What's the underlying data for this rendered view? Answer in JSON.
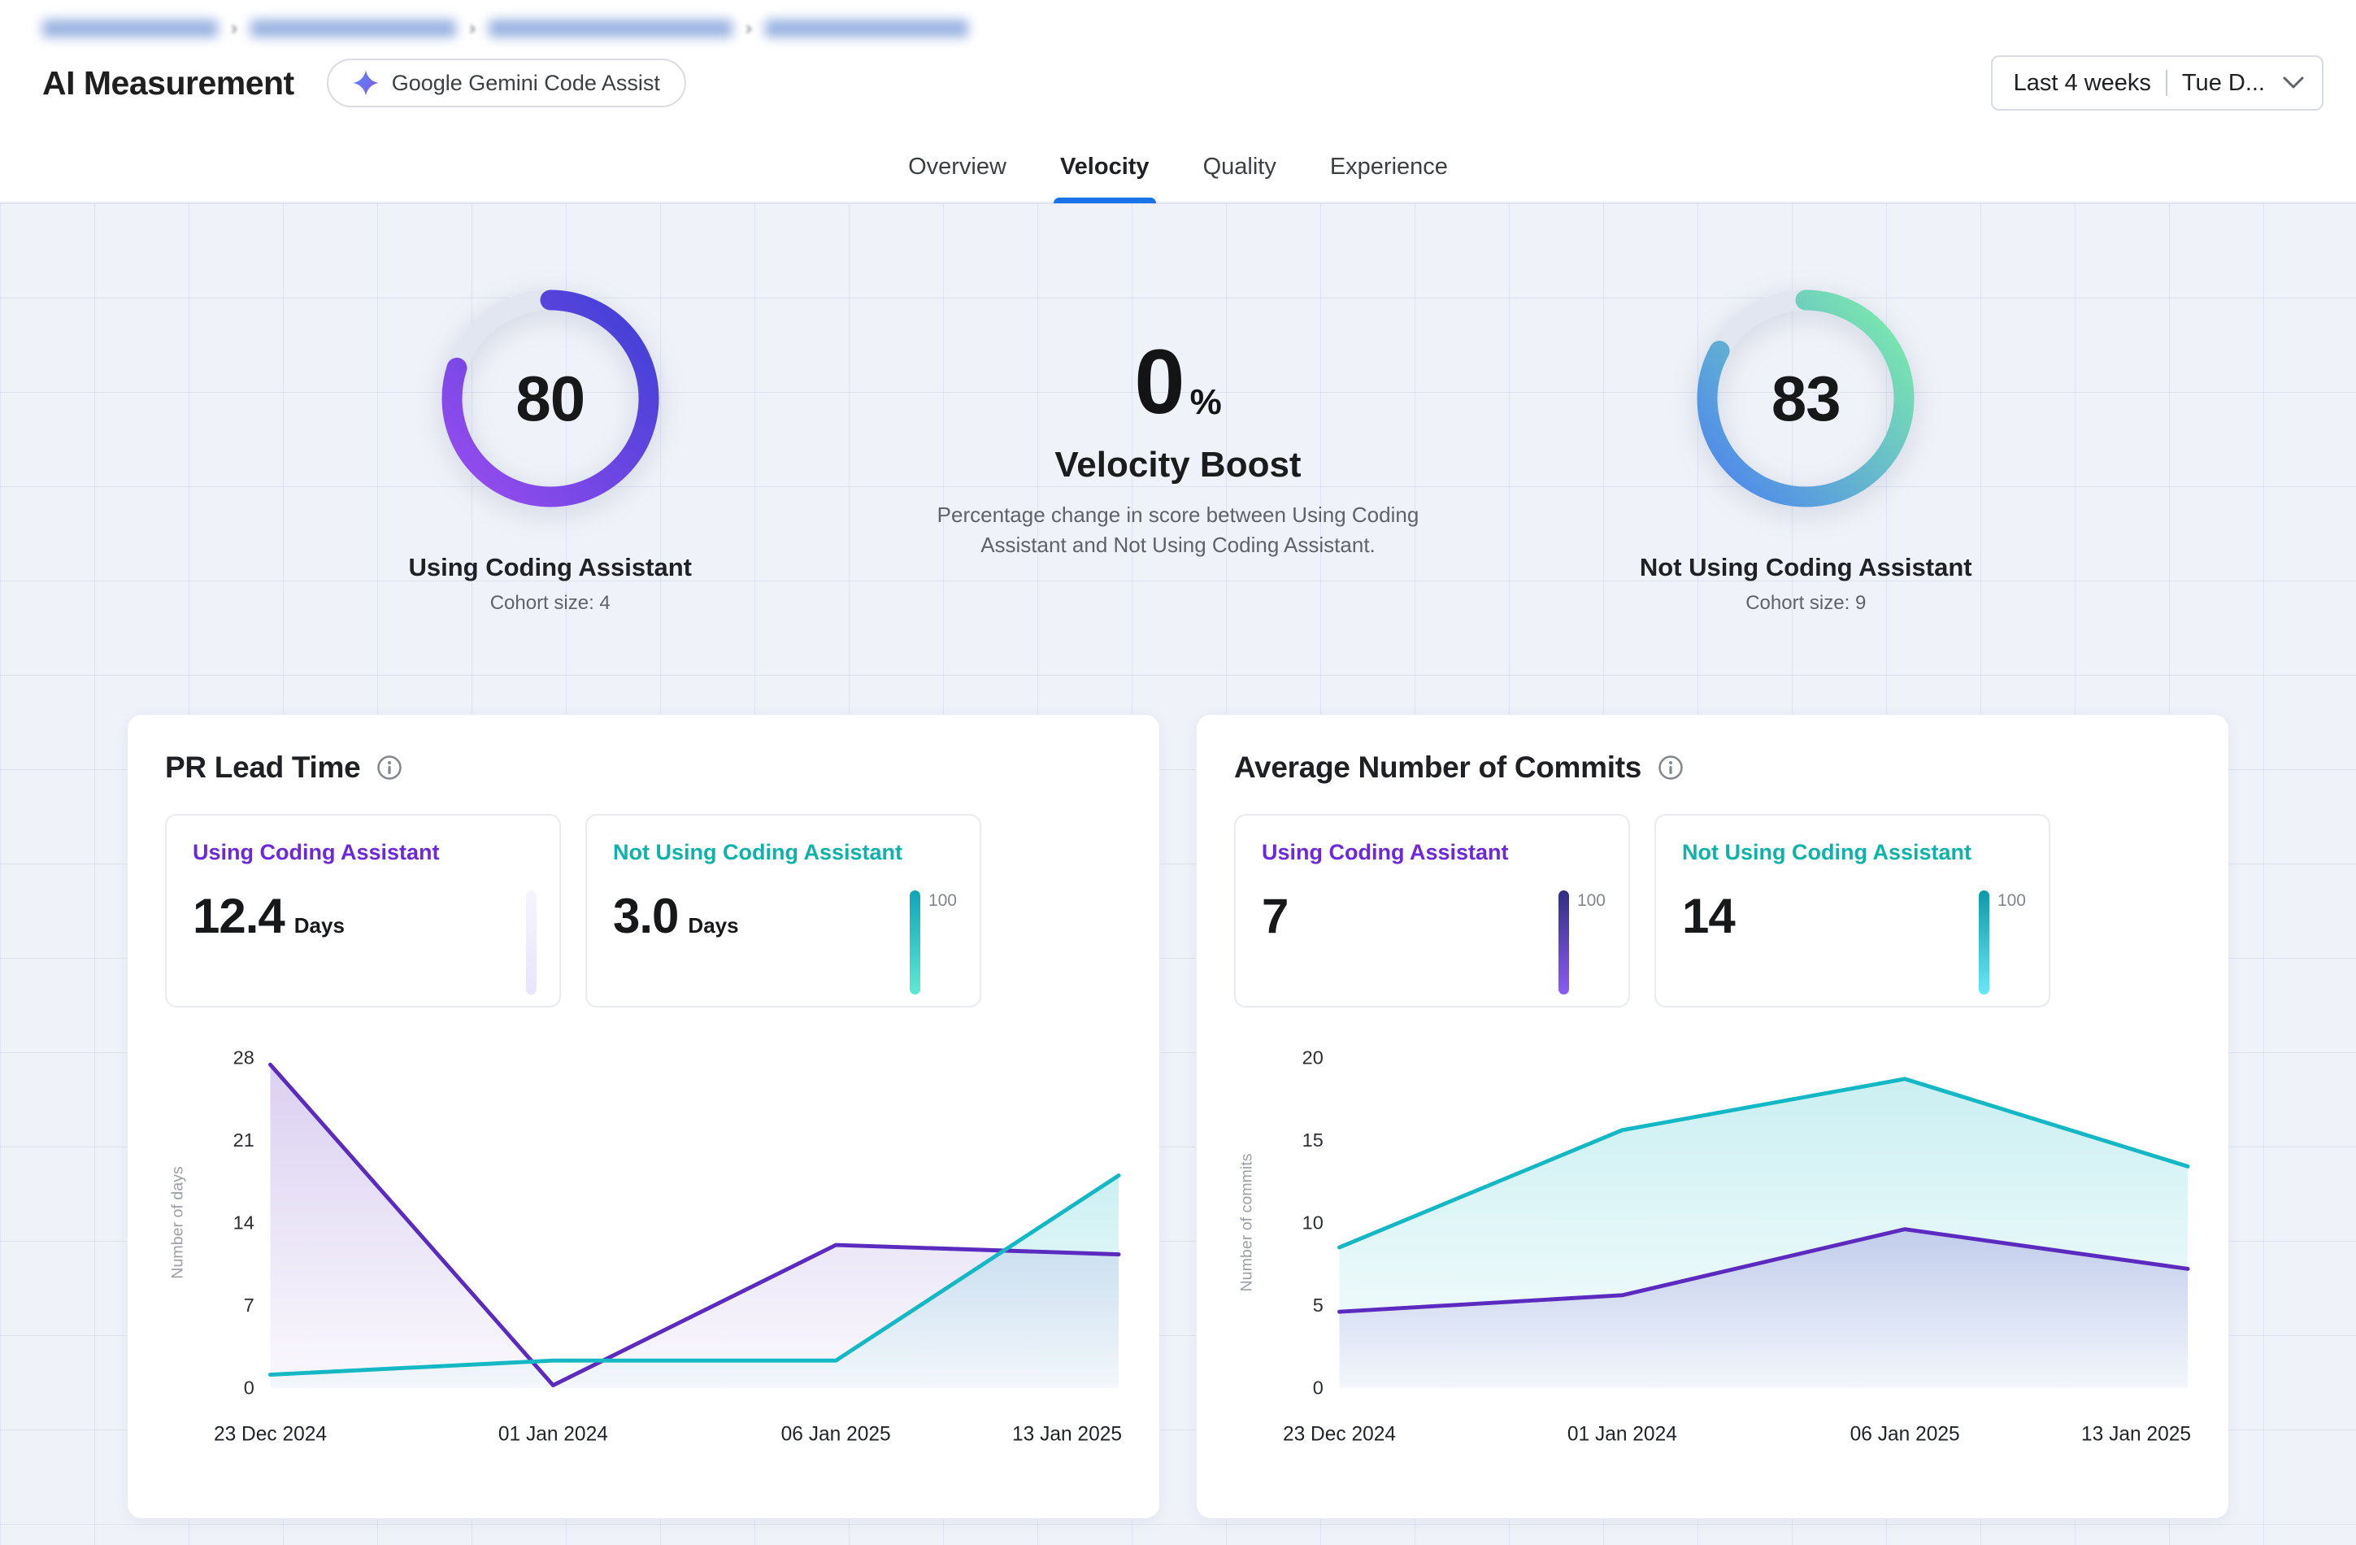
{
  "breadcrumb": {
    "separator": "›",
    "redacted_segments": [
      216,
      253,
      300,
      250
    ]
  },
  "header": {
    "title": "AI Measurement",
    "badge_label": "Google Gemini Code Assist",
    "date_range": {
      "range_label": "Last 4 weeks",
      "detail_label": "Tue D..."
    }
  },
  "tabs": [
    {
      "label": "Overview",
      "active": false
    },
    {
      "label": "Velocity",
      "active": true
    },
    {
      "label": "Quality",
      "active": false
    },
    {
      "label": "Experience",
      "active": false
    }
  ],
  "scores": {
    "using": {
      "value": 80,
      "max": 100,
      "label": "Using Coding Assistant",
      "cohort": "Cohort size: 4",
      "gradient": [
        "#9b4df0",
        "#4340d6"
      ]
    },
    "boost": {
      "value": "0",
      "unit": "%",
      "title": "Velocity Boost",
      "description": "Percentage change in score between Using Coding Assistant and Not Using Coding Assistant."
    },
    "not_using": {
      "value": 83,
      "max": 100,
      "label": "Not Using Coding Assistant",
      "cohort": "Cohort size: 9",
      "gradient": [
        "#4c82f0",
        "#7be8ad"
      ]
    }
  },
  "cards": [
    {
      "title": "PR Lead Time",
      "stats": [
        {
          "label": "Using Coding Assistant",
          "value": "12.4",
          "unit": "Days",
          "accent": "#6d28d9",
          "max_label": "",
          "bar_from": "#e9e4fb",
          "bar_to": "#f6f4fe"
        },
        {
          "label": "Not Using Coding Assistant",
          "value": "3.0",
          "unit": "Days",
          "accent": "#0eb2ab",
          "max_label": "100",
          "bar_from": "#5eead4",
          "bar_to": "#0ea5b7"
        }
      ]
    },
    {
      "title": "Average Number of Commits",
      "stats": [
        {
          "label": "Using Coding Assistant",
          "value": "7",
          "unit": "",
          "accent": "#6d28d9",
          "max_label": "100",
          "bar_from": "#8b5cf6",
          "bar_to": "#312e81"
        },
        {
          "label": "Not Using Coding Assistant",
          "value": "14",
          "unit": "",
          "accent": "#0eb2ab",
          "max_label": "100",
          "bar_from": "#67e8f9",
          "bar_to": "#0e9aa8"
        }
      ]
    }
  ],
  "chart_data": [
    {
      "type": "area",
      "title": "PR Lead Time",
      "x": [
        "23 Dec 2024",
        "01 Jan 2024",
        "06 Jan 2025",
        "13 Jan 2025"
      ],
      "ylabel": "Number of days",
      "yticks": [
        0,
        7,
        14,
        21,
        28
      ],
      "ylim": [
        0,
        28
      ],
      "legend": "none",
      "series": [
        {
          "name": "Using Coding Assistant",
          "color": "#5b2bbf",
          "values": [
            27.4,
            0.2,
            12.1,
            11.3
          ]
        },
        {
          "name": "Not Using Coding Assistant",
          "color": "#13b8c4",
          "values": [
            1.1,
            2.3,
            2.3,
            18.0
          ]
        }
      ]
    },
    {
      "type": "area",
      "title": "Average Number of Commits",
      "x": [
        "23 Dec 2024",
        "01 Jan 2024",
        "06 Jan 2025",
        "13 Jan 2025"
      ],
      "ylabel": "Number of commits",
      "yticks": [
        0,
        5,
        10,
        15,
        20
      ],
      "ylim": [
        0,
        20
      ],
      "legend": "none",
      "series": [
        {
          "name": "Using Coding Assistant",
          "color": "#5b2bbf",
          "values": [
            4.6,
            5.6,
            9.6,
            7.2
          ]
        },
        {
          "name": "Not Using Coding Assistant",
          "color": "#13b8c4",
          "values": [
            8.5,
            15.6,
            18.7,
            13.4
          ]
        }
      ]
    }
  ]
}
